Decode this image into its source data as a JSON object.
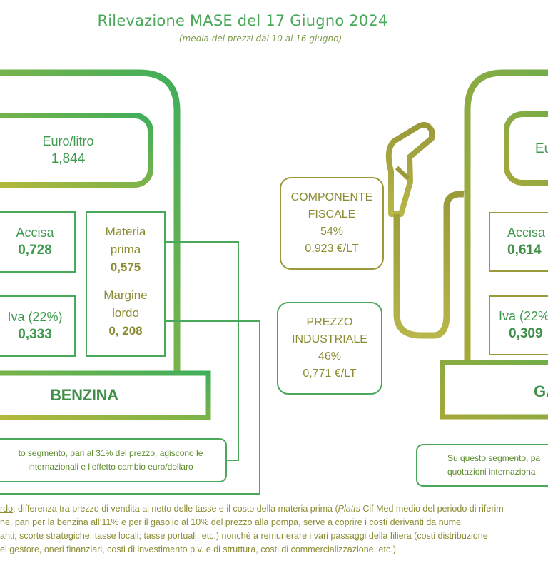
{
  "header": {
    "title": "Rilevazione MASE del 17 Giugno 2024",
    "subtitle": "(media dei prezzi dal 10 al 16 giugno)"
  },
  "benzina": {
    "price_label": "Euro/litro",
    "price_value": "1,844",
    "accisa_label": "Accisa",
    "accisa_value": "0,728",
    "iva_label": "Iva (22%)",
    "iva_value": "0,333",
    "materia_label_1": "Materia",
    "materia_label_2": "prima",
    "materia_value": "0,575",
    "margine_label_1": "Margine",
    "margine_label_2": "lordo",
    "margine_value": "0, 208",
    "name": "BENZINA",
    "note_line_1": "to segmento, pari al 31% del prezzo, agiscono le",
    "note_line_2": "internazionali e l’effetto cambio euro/dollaro"
  },
  "center": {
    "fiscale_line_1": "COMPONENTE",
    "fiscale_line_2": "FISCALE",
    "fiscale_pct": "54%",
    "fiscale_value": "0,923 €/LT",
    "industriale_line_1": "PREZZO",
    "industriale_line_2": "INDUSTRIALE",
    "industriale_pct": "46%",
    "industriale_value": "0,771 €/LT"
  },
  "gasolio": {
    "price_label": "Eu",
    "accisa_label": "Accisa",
    "accisa_value": "0,614",
    "iva_label": "Iva (22%",
    "iva_value": "0,309",
    "name": "GA",
    "note_line_1": "Su questo segmento, pa",
    "note_line_2": "quotazioni internaziona"
  },
  "footer": {
    "line_1_term": "rdo",
    "line_1_text": ": differenza tra prezzo di vendita al netto delle tasse e il costo della materia prima (",
    "line_1_italic": "Platts",
    "line_1_rest": " Cif Med medio del periodo di riferim",
    "line_2": "ne, pari per la benzina all’11% e per il gasolio al 10% del prezzo alla pompa, serve a coprire i costi derivanti da nume",
    "line_3": "anti; scorte strategiche; tasse locali; tasse portuali, etc.) nonché a remunerare i vari passaggi della filiera (costi distribuzione",
    "line_4": "el gestore, oneri finanziari, costi di investimento p.v. e di struttura, costi di commercializzazione, etc.)"
  },
  "colors": {
    "green": "#4aa85a",
    "olive": "#9a9a3a",
    "green_text": "#3f9a4f",
    "olive_text": "#8c8c33"
  }
}
